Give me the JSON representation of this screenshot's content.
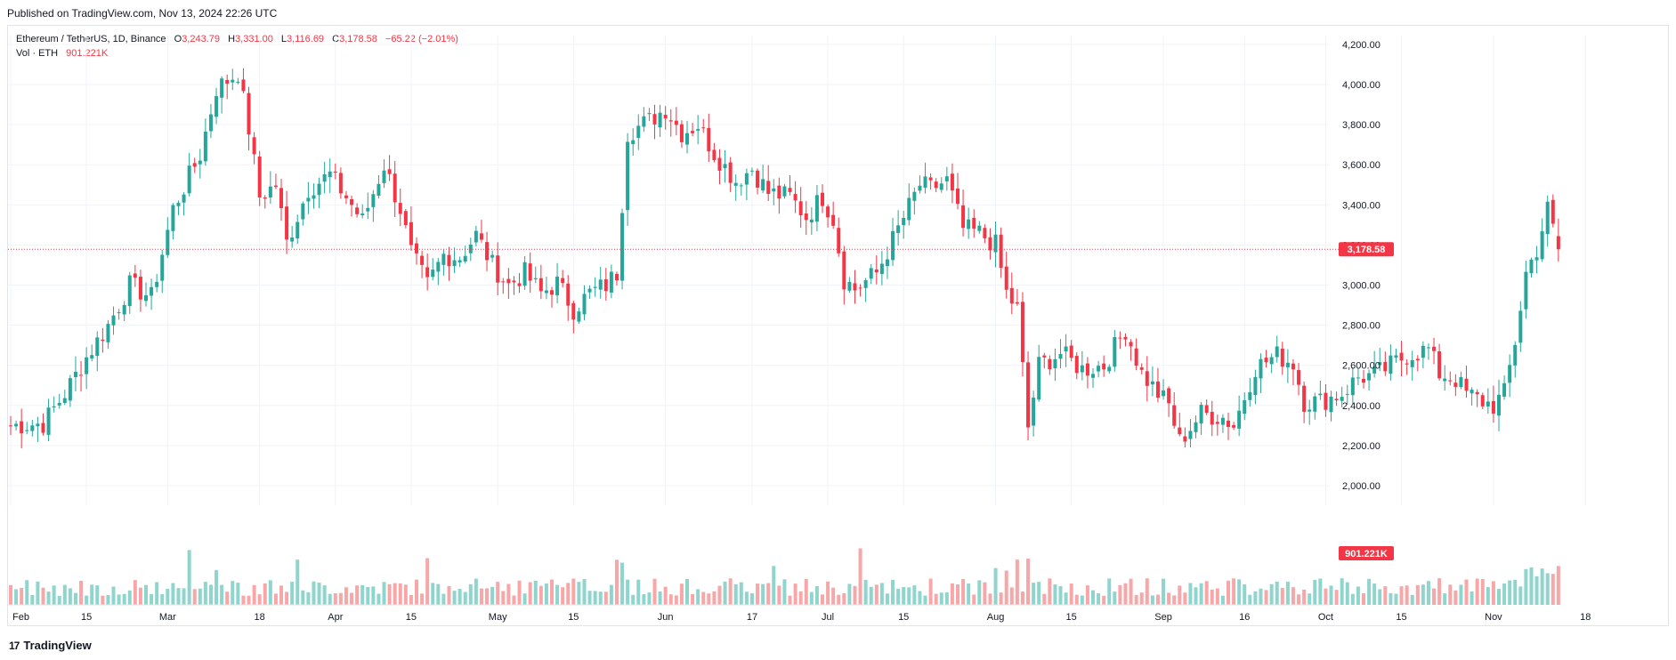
{
  "header": {
    "published": "Published on TradingView.com, Nov 13, 2024 22:26 UTC"
  },
  "legend": {
    "symbol": "Ethereum / TetherUS, 1D, Binance",
    "open_label": "O",
    "open": "3,243.79",
    "high_label": "H",
    "high": "3,331.00",
    "low_label": "L",
    "low": "3,116.69",
    "close_label": "C",
    "close": "3,178.58",
    "change": "−65.22 (−2.01%)",
    "volume_name": "Vol · ETH",
    "volume_value": "901.221K"
  },
  "footer": {
    "brand": "TradingView",
    "brand_mark": "17"
  },
  "colors": {
    "up": "#26a69a",
    "down": "#f23645",
    "vol_up": "#8fd5cd",
    "vol_down": "#f7a7a7",
    "grid": "#f0f3fa"
  },
  "chart_data": {
    "type": "candlestick",
    "title": "Ethereum / TetherUS, 1D, Binance",
    "y_ticks": [
      "2,000.00",
      "2,200.00",
      "2,400.00",
      "2,600.00",
      "2,800.00",
      "3,000.00",
      "3,200.00",
      "3,400.00",
      "3,600.00",
      "3,800.00",
      "4,000.00",
      "4,200.00"
    ],
    "ylim": [
      1900,
      4300
    ],
    "x_ticks": [
      {
        "label": "Feb",
        "day": 0
      },
      {
        "label": "15",
        "day": 14
      },
      {
        "label": "Mar",
        "day": 29
      },
      {
        "label": "18",
        "day": 46
      },
      {
        "label": "Apr",
        "day": 60
      },
      {
        "label": "15",
        "day": 74
      },
      {
        "label": "May",
        "day": 90
      },
      {
        "label": "15",
        "day": 104
      },
      {
        "label": "Jun",
        "day": 121
      },
      {
        "label": "17",
        "day": 137
      },
      {
        "label": "Jul",
        "day": 151
      },
      {
        "label": "15",
        "day": 165
      },
      {
        "label": "Aug",
        "day": 182
      },
      {
        "label": "15",
        "day": 196
      },
      {
        "label": "Sep",
        "day": 213
      },
      {
        "label": "16",
        "day": 228
      },
      {
        "label": "Oct",
        "day": 243
      },
      {
        "label": "15",
        "day": 257
      },
      {
        "label": "Nov",
        "day": 274
      },
      {
        "label": "18",
        "day": 291
      }
    ],
    "last_price": "3,178.58",
    "last_price_value": 3178.58,
    "last_volume": "901.221K",
    "close_path": [
      [
        0,
        2300
      ],
      [
        6,
        2310
      ],
      [
        10,
        2460
      ],
      [
        14,
        2640
      ],
      [
        18,
        2800
      ],
      [
        22,
        3000
      ],
      [
        26,
        2940
      ],
      [
        30,
        3380
      ],
      [
        35,
        3650
      ],
      [
        38,
        3980
      ],
      [
        42,
        4060
      ],
      [
        44,
        3780
      ],
      [
        46,
        3440
      ],
      [
        49,
        3500
      ],
      [
        51,
        3210
      ],
      [
        55,
        3480
      ],
      [
        59,
        3550
      ],
      [
        62,
        3440
      ],
      [
        65,
        3320
      ],
      [
        69,
        3600
      ],
      [
        72,
        3380
      ],
      [
        74,
        3160
      ],
      [
        77,
        3000
      ],
      [
        80,
        3150
      ],
      [
        83,
        3140
      ],
      [
        86,
        3250
      ],
      [
        89,
        3100
      ],
      [
        92,
        3000
      ],
      [
        95,
        3060
      ],
      [
        98,
        2960
      ],
      [
        101,
        3010
      ],
      [
        104,
        2880
      ],
      [
        107,
        2960
      ],
      [
        110,
        3000
      ],
      [
        112,
        3060
      ],
      [
        114,
        3760
      ],
      [
        118,
        3820
      ],
      [
        121,
        3880
      ],
      [
        124,
        3760
      ],
      [
        127,
        3800
      ],
      [
        130,
        3660
      ],
      [
        134,
        3520
      ],
      [
        137,
        3580
      ],
      [
        140,
        3460
      ],
      [
        144,
        3440
      ],
      [
        147,
        3340
      ],
      [
        150,
        3440
      ],
      [
        152,
        3330
      ],
      [
        154,
        3030
      ],
      [
        156,
        2980
      ],
      [
        160,
        3060
      ],
      [
        164,
        3280
      ],
      [
        168,
        3500
      ],
      [
        170,
        3480
      ],
      [
        173,
        3520
      ],
      [
        176,
        3280
      ],
      [
        179,
        3260
      ],
      [
        182,
        3200
      ],
      [
        184,
        2960
      ],
      [
        186,
        2880
      ],
      [
        188,
        2290
      ],
      [
        190,
        2600
      ],
      [
        194,
        2660
      ],
      [
        198,
        2580
      ],
      [
        202,
        2600
      ],
      [
        206,
        2780
      ],
      [
        209,
        2560
      ],
      [
        212,
        2460
      ],
      [
        214,
        2400
      ],
      [
        216,
        2220
      ],
      [
        220,
        2360
      ],
      [
        224,
        2340
      ],
      [
        226,
        2300
      ],
      [
        230,
        2590
      ],
      [
        234,
        2650
      ],
      [
        237,
        2610
      ],
      [
        239,
        2420
      ],
      [
        242,
        2420
      ],
      [
        246,
        2460
      ],
      [
        249,
        2540
      ],
      [
        252,
        2550
      ],
      [
        255,
        2600
      ],
      [
        258,
        2650
      ],
      [
        262,
        2680
      ],
      [
        264,
        2560
      ],
      [
        267,
        2530
      ],
      [
        269,
        2460
      ],
      [
        272,
        2420
      ],
      [
        274,
        2400
      ],
      [
        276,
        2460
      ],
      [
        278,
        2720
      ],
      [
        280,
        3060
      ],
      [
        282,
        3180
      ],
      [
        284,
        3380
      ],
      [
        286,
        3178.58
      ]
    ],
    "candle_count": 287
  }
}
